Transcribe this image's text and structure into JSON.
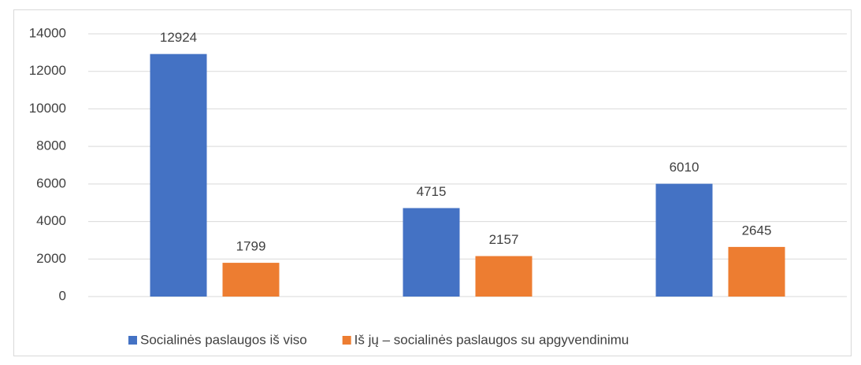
{
  "chart_data": {
    "type": "bar",
    "categories": [
      null,
      null,
      null
    ],
    "series": [
      {
        "name": "Socialinės paslaugos iš viso",
        "color": "#4472c4",
        "values": [
          12924,
          4715,
          6010
        ]
      },
      {
        "name": "Iš jų – socialinės paslaugos su apgyvendinimu",
        "color": "#ed7d31",
        "values": [
          1799,
          2157,
          2645
        ]
      }
    ],
    "ylim": [
      0,
      14000
    ],
    "yticks": [
      0,
      2000,
      4000,
      6000,
      8000,
      10000,
      12000,
      14000
    ],
    "grid": true,
    "legend": "bottom",
    "data_labels": true
  }
}
